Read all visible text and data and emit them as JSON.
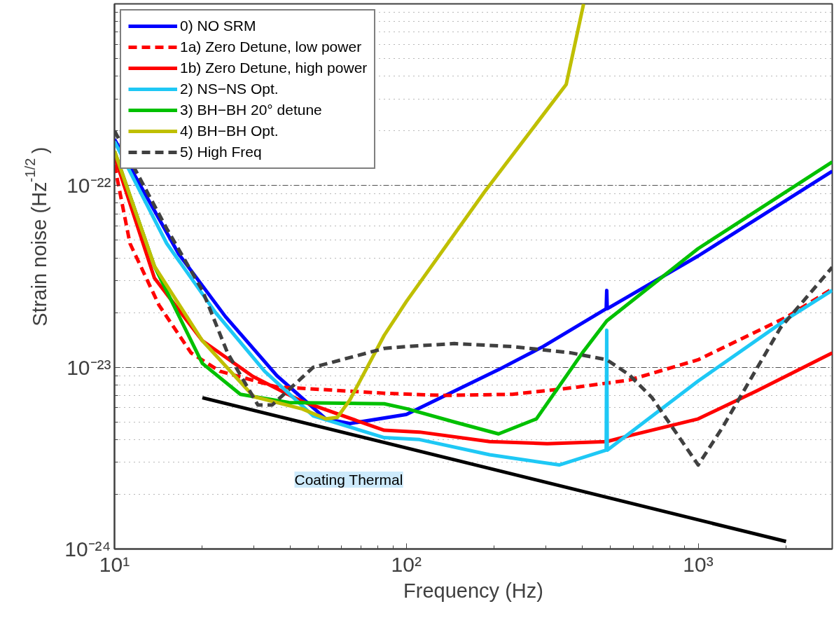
{
  "chart_data": {
    "type": "line",
    "xlabel": "Frequency (Hz)",
    "ylabel": "Strain noise (Hz$^{-1/2}$)",
    "log": "xy",
    "grid": true,
    "legend": "top left",
    "xlim": [
      10,
      2880
    ],
    "ylim": [
      1e-24,
      1e-21
    ],
    "xticks": [
      {
        "value": 10,
        "label": "10¹"
      },
      {
        "value": 100,
        "label": "10²"
      },
      {
        "value": 1000,
        "label": "10³"
      }
    ],
    "yticks": [
      {
        "value": 1e-24,
        "label": "10⁻²⁴"
      },
      {
        "value": 1e-23,
        "label": "10⁻²³"
      },
      {
        "value": 1e-22,
        "label": "10⁻²²"
      }
    ],
    "annotations": [
      "Coating Thermal"
    ],
    "series": [
      {
        "name": "0) NO SRM",
        "color": "#0000ff",
        "line_style": "solid",
        "x": [
          10,
          16.6,
          24,
          36,
          53,
          64,
          100,
          207,
          294,
          484,
          486,
          488,
          1000,
          2880
        ],
        "values": [
          1.8e-22,
          4.2e-23,
          1.9e-23,
          9e-24,
          5.2e-24,
          4.9e-24,
          5.5e-24,
          9.7e-24,
          1.3e-23,
          2.1e-23,
          2.65e-23,
          2.1e-23,
          4.1e-23,
          1.2e-22
        ]
      },
      {
        "name": "1a) Zero Detune, low power",
        "color": "#ff0000",
        "line_style": "dashed",
        "x": [
          10,
          11.3,
          14.2,
          18.3,
          23,
          36,
          84,
          133,
          231,
          367,
          580,
          1000,
          2020,
          2880
        ],
        "values": [
          1.3e-22,
          4.8e-23,
          2.2e-23,
          1.2e-23,
          9.5e-24,
          7.8e-24,
          7.2e-24,
          7e-24,
          7.1e-24,
          7.7e-24,
          8.5e-24,
          1.1e-23,
          1.9e-23,
          2.7e-23
        ]
      },
      {
        "name": "1b) Zero Detune, high power",
        "color": "#ff0000",
        "line_style": "solid",
        "x": [
          10,
          13.7,
          20,
          29.8,
          43.8,
          84,
          111,
          193,
          304,
          486,
          580,
          1000,
          1585,
          2880
        ],
        "values": [
          1.45e-22,
          3.1e-23,
          1.4e-23,
          8.9e-24,
          6.5e-24,
          4.5e-24,
          4.4e-24,
          3.9e-24,
          3.8e-24,
          3.9e-24,
          4.2e-24,
          5.2e-24,
          7.4e-24,
          1.2e-23
        ]
      },
      {
        "name": "2) NS−NS Opt.",
        "color": "#1ec8f5",
        "line_style": "solid",
        "x": [
          10,
          15.1,
          22.2,
          32.7,
          48,
          84,
          111,
          193,
          334,
          484,
          486,
          488,
          1000,
          2020,
          2880
        ],
        "values": [
          1.75e-22,
          4.8e-23,
          2e-23,
          9.5e-24,
          5.4e-24,
          4.1e-24,
          4e-24,
          3.3e-24,
          2.9e-24,
          3.5e-24,
          1.6e-23,
          3.5e-24,
          8.4e-24,
          1.85e-23,
          2.65e-23
        ]
      },
      {
        "name": "3) BH−BH 20° detune",
        "color": "#00c000",
        "line_style": "solid",
        "x": [
          10,
          13.7,
          20,
          27,
          39.6,
          84,
          101,
          146,
          207,
          279,
          401,
          486,
          1000,
          2880
        ],
        "values": [
          1.55e-22,
          3.6e-23,
          1.05e-23,
          7.1e-24,
          6.4e-24,
          6.3e-24,
          5.9e-24,
          5e-24,
          4.3e-24,
          5.2e-24,
          1.2e-23,
          1.8e-23,
          4.5e-23,
          1.35e-22
        ]
      },
      {
        "name": "4) BH−BH Opt.",
        "color": "#bfbf00",
        "line_style": "solid",
        "x": [
          10,
          13.7,
          20,
          30,
          44,
          53,
          58,
          64,
          84,
          100,
          185,
          353,
          405
        ],
        "values": [
          1.55e-22,
          3.6e-23,
          1.4e-23,
          6.9e-24,
          5.9e-24,
          5.2e-24,
          5.3e-24,
          6.6e-24,
          1.5e-23,
          2.3e-23,
          9.2e-23,
          3.6e-22,
          1e-21
        ]
      },
      {
        "name": "5) High Freq",
        "color": "#404040",
        "line_style": "dashed",
        "x": [
          10,
          15.1,
          20,
          24.4,
          31,
          34.7,
          48,
          84,
          100,
          146,
          231,
          367,
          486,
          580,
          695,
          1000,
          1205,
          1915,
          2880
        ],
        "values": [
          2e-22,
          5.8e-23,
          2.65e-23,
          1.2e-23,
          6.2e-24,
          6.2e-24,
          1e-23,
          1.27e-23,
          1.3e-23,
          1.35e-23,
          1.3e-23,
          1.2e-23,
          1.1e-23,
          9.1e-24,
          6.8e-24,
          2.9e-24,
          4.6e-24,
          1.65e-23,
          3.55e-23
        ]
      },
      {
        "color": "#000000",
        "line_style": "solid",
        "x": [
          20,
          2000
        ],
        "values": [
          6.8e-24,
          1.1e-24
        ]
      }
    ]
  }
}
